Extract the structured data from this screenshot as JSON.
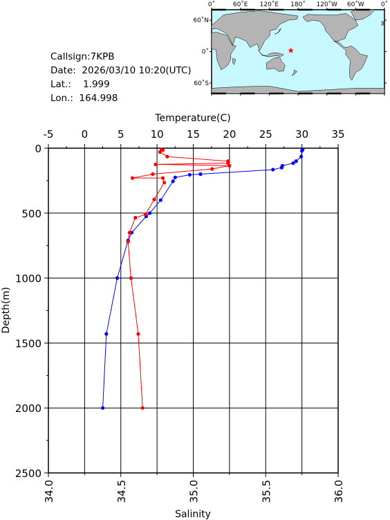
{
  "info": {
    "callsign": "Callsign:7KPB",
    "date": "Date:  2026/03/10 10:20(UTC)",
    "lat": "Lat.:    1.999",
    "lon": "Lon.:  164.998"
  },
  "map": {
    "lon_labels": [
      "0˚",
      "60˚E",
      "120˚E",
      "180˚",
      "120˚W",
      "60˚W",
      "0˚"
    ],
    "lat_labels": [
      "60˚N",
      "0˚",
      "60˚S"
    ],
    "station": {
      "lat": 1.999,
      "lon": 164.998
    },
    "colors": {
      "ocean": "#c8f8ff",
      "land": "#b4b4b4",
      "marker": "#ff0000"
    }
  },
  "chart_data": {
    "type": "line",
    "ylabel": "Depth(m)",
    "top_xlabel": "Temperature(C)",
    "bottom_xlabel": "Salinity",
    "ylim": [
      0,
      2500
    ],
    "y_inverted": true,
    "temperature_lim": [
      -5,
      35
    ],
    "salinity_lim": [
      34.0,
      36.0
    ],
    "y_ticks": [
      "0",
      "500",
      "1000",
      "1500",
      "2000",
      "2500"
    ],
    "temperature_ticks": [
      "-5",
      "0",
      "5",
      "10",
      "15",
      "20",
      "25",
      "30",
      "35"
    ],
    "salinity_ticks": [
      "34.0",
      "34.5",
      "35.0",
      "35.5",
      "36.0"
    ],
    "grid": true,
    "series": [
      {
        "axis": "top",
        "color": "#0000ff",
        "points": [
          [
            30.1,
            10
          ],
          [
            30.0,
            20
          ],
          [
            29.9,
            65
          ],
          [
            29.2,
            100
          ],
          [
            28.8,
            115
          ],
          [
            27.3,
            135
          ],
          [
            27.2,
            150
          ],
          [
            26.0,
            165
          ],
          [
            16.0,
            200
          ],
          [
            14.5,
            205
          ],
          [
            12.5,
            225
          ],
          [
            12.2,
            255
          ],
          [
            10.5,
            400
          ],
          [
            9.0,
            500
          ],
          [
            8.5,
            525
          ],
          [
            6.5,
            650
          ],
          [
            6.0,
            710
          ],
          [
            4.5,
            1000
          ],
          [
            3.0,
            1430
          ],
          [
            2.5,
            2000
          ]
        ]
      },
      {
        "axis": "bottom",
        "color": "#ff0000",
        "points": [
          [
            34.78,
            10
          ],
          [
            34.79,
            15
          ],
          [
            34.77,
            30
          ],
          [
            34.82,
            65
          ],
          [
            35.24,
            100
          ],
          [
            35.24,
            115
          ],
          [
            34.74,
            125
          ],
          [
            35.25,
            135
          ],
          [
            35.13,
            160
          ],
          [
            34.72,
            200
          ],
          [
            34.58,
            230
          ],
          [
            34.79,
            230
          ],
          [
            34.8,
            265
          ],
          [
            34.73,
            395
          ],
          [
            34.67,
            510
          ],
          [
            34.6,
            535
          ],
          [
            34.56,
            650
          ],
          [
            34.55,
            720
          ],
          [
            34.57,
            1000
          ],
          [
            34.62,
            1430
          ],
          [
            34.65,
            2000
          ]
        ]
      }
    ]
  }
}
